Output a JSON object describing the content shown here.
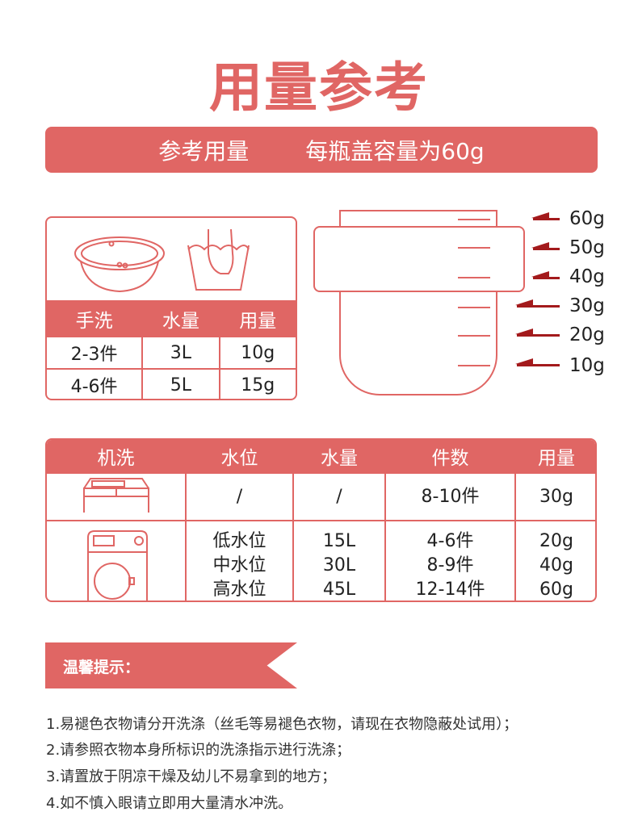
{
  "title": "用量参考",
  "banner": {
    "left": "参考用量",
    "right": "每瓶盖容量为60g"
  },
  "hand_wash": {
    "headers": [
      "手洗",
      "水量",
      "用量"
    ],
    "rows": [
      [
        "2-3件",
        "3L",
        "10g"
      ],
      [
        "4-6件",
        "5L",
        "15g"
      ]
    ]
  },
  "cup_marks": [
    "60g",
    "50g",
    "40g",
    "30g",
    "20g",
    "10g"
  ],
  "machine_wash": {
    "headers": [
      "机洗",
      "水位",
      "水量",
      "件数",
      "用量"
    ],
    "rows": [
      {
        "level": "/",
        "water": "/",
        "items": "8-10件",
        "dose": "30g"
      },
      {
        "level": [
          "低水位",
          "中水位",
          "高水位"
        ],
        "water": [
          "15L",
          "30L",
          "45L"
        ],
        "items": [
          "4-6件",
          "8-9件",
          "12-14件"
        ],
        "dose": [
          "20g",
          "40g",
          "60g"
        ]
      }
    ]
  },
  "tips": {
    "heading": "温馨提示：",
    "items": [
      "1.易褪色衣物请分开洗涤（丝毛等易褪色衣物，请现在衣物隐蔽处试用）；",
      "2.请参照衣物本身所标识的洗涤指示进行洗涤；",
      "3.请置放于阴凉干燥及幼儿不易拿到的地方；",
      "4.如不慎入眼请立即用大量清水冲洗。"
    ]
  },
  "colors": {
    "accent": "#e06664",
    "arrow": "#a31a1c"
  }
}
